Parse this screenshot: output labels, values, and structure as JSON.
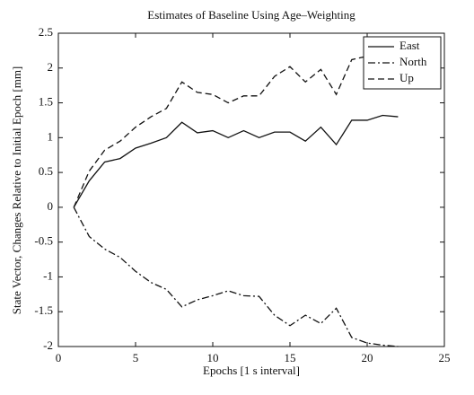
{
  "chart_data": {
    "type": "line",
    "title": "Estimates of Baseline Using Age–Weighting",
    "xlabel": "Epochs [1 s interval]",
    "ylabel": "State Vector, Changes Relative to Initial Epoch [mm]",
    "x": [
      1,
      2,
      3,
      4,
      5,
      6,
      7,
      8,
      9,
      10,
      11,
      12,
      13,
      14,
      15,
      16,
      17,
      18,
      19,
      20,
      21,
      22
    ],
    "series": [
      {
        "name": "East",
        "color": "#111111",
        "style": "solid",
        "values": [
          0,
          0.38,
          0.65,
          0.7,
          0.85,
          0.92,
          1.0,
          1.22,
          1.07,
          1.1,
          1.0,
          1.1,
          1.0,
          1.08,
          1.08,
          0.95,
          1.15,
          0.9,
          1.25,
          1.25,
          1.32,
          1.3
        ]
      },
      {
        "name": "North",
        "color": "#111111",
        "style": "dashdot",
        "values": [
          0,
          -0.42,
          -0.6,
          -0.72,
          -0.92,
          -1.08,
          -1.18,
          -1.43,
          -1.33,
          -1.27,
          -1.2,
          -1.27,
          -1.28,
          -1.55,
          -1.7,
          -1.55,
          -1.67,
          -1.45,
          -1.87,
          -1.95,
          -1.98,
          -2.0
        ]
      },
      {
        "name": "Up",
        "color": "#111111",
        "style": "dashed",
        "values": [
          0,
          0.52,
          0.82,
          0.95,
          1.15,
          1.3,
          1.42,
          1.8,
          1.65,
          1.62,
          1.5,
          1.6,
          1.6,
          1.88,
          2.02,
          1.8,
          1.98,
          1.62,
          2.12,
          2.17,
          2.2,
          2.2
        ]
      }
    ],
    "xlim": [
      0,
      25
    ],
    "xticks": [
      0,
      5,
      10,
      15,
      20,
      25
    ],
    "ylim": [
      -2,
      2.5
    ],
    "yticks": [
      -2,
      -1.5,
      -1,
      -0.5,
      0,
      0.5,
      1,
      1.5,
      2,
      2.5
    ],
    "legend": "upper right",
    "grid": false
  }
}
